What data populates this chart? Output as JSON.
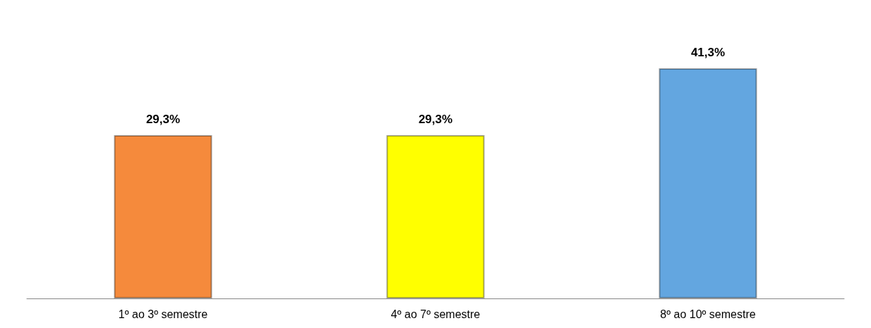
{
  "chart_data": {
    "type": "bar",
    "categories": [
      "1º ao 3º semestre",
      "4º ao 7º semestre",
      "8º ao 10º semestre"
    ],
    "values": [
      29.3,
      29.3,
      41.3
    ],
    "value_labels": [
      "29,3%",
      "29,3%",
      "41,3%"
    ],
    "colors": [
      "#f58a3c",
      "#ffff00",
      "#63a6e0"
    ]
  }
}
